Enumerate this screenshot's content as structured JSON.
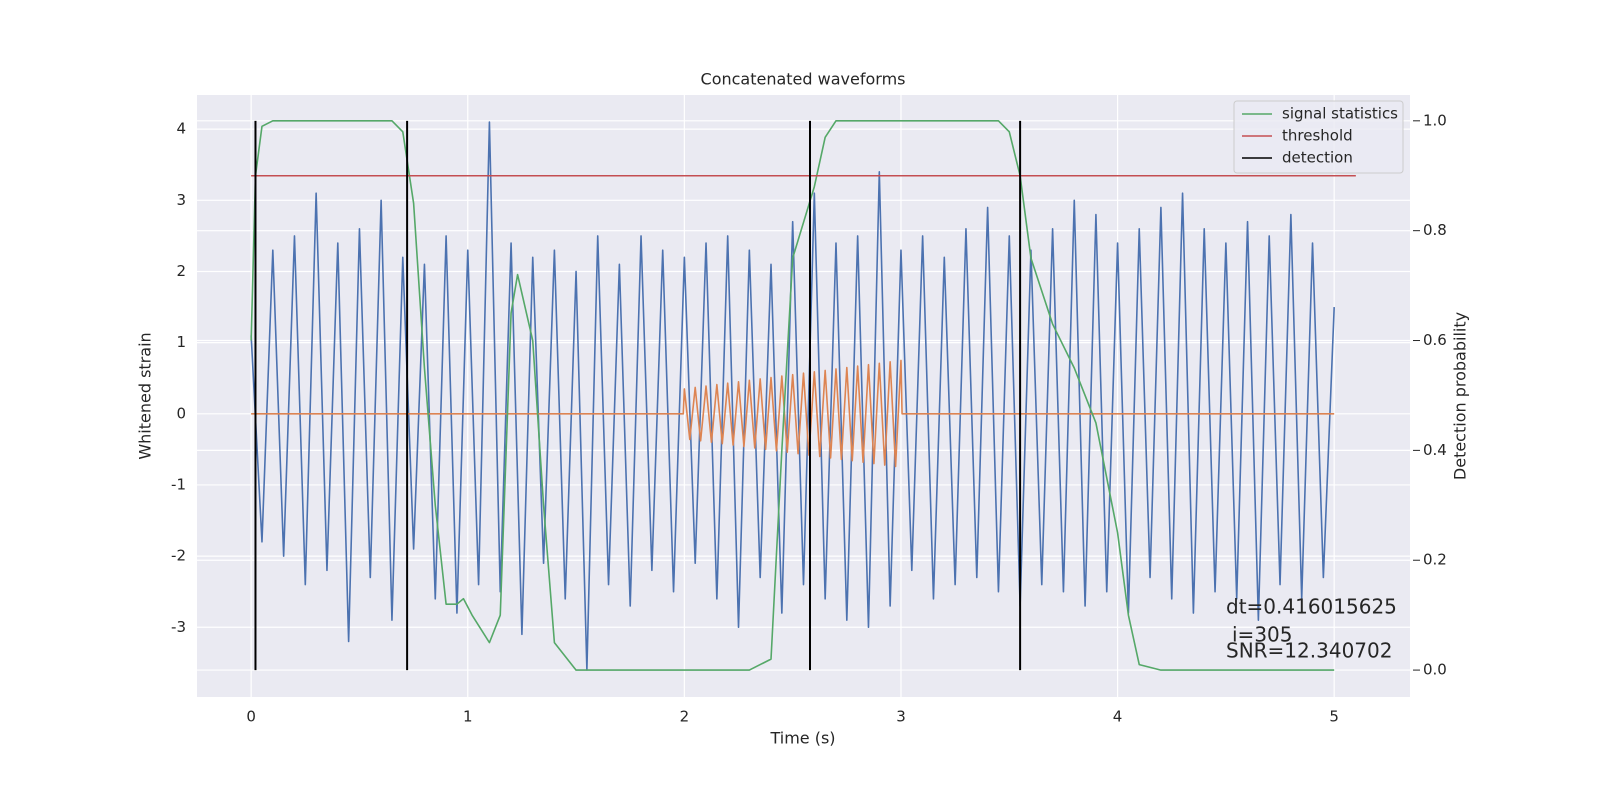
{
  "chart_data": {
    "type": "line",
    "title": "Concatenated waveforms",
    "xlabel": "Time (s)",
    "ylabel": "Whitened strain",
    "y2label": "Detection probability",
    "xlim": [
      -0.25,
      5.35
    ],
    "xticks": [
      0,
      1,
      2,
      3,
      4,
      5
    ],
    "ylim": [
      -3.98,
      4.48
    ],
    "yticks": [
      -3,
      -2,
      -1,
      0,
      1,
      2,
      3,
      4
    ],
    "y2lim": [
      -0.049,
      1.047
    ],
    "y2ticks": [
      {
        "value": 0,
        "label": "0.0"
      },
      {
        "value": 0.2,
        "label": "0.2"
      },
      {
        "value": 0.4,
        "label": "0.4"
      },
      {
        "value": 0.6,
        "label": "0.6"
      },
      {
        "value": 0.8,
        "label": "0.8"
      },
      {
        "value": 1.0,
        "label": "1.0"
      }
    ],
    "grid": true,
    "legend": "upper right",
    "series": [
      {
        "color": "#4c72b0",
        "x": [
          0,
          0.05,
          0.1,
          0.15,
          0.2,
          0.25,
          0.3,
          0.35,
          0.4,
          0.45,
          0.5,
          0.55,
          0.6,
          0.65,
          0.7,
          0.75,
          0.8,
          0.85,
          0.9,
          0.95,
          1.0,
          1.05,
          1.1,
          1.15,
          1.2,
          1.25,
          1.3,
          1.35,
          1.4,
          1.45,
          1.5,
          1.55,
          1.6,
          1.65,
          1.7,
          1.75,
          1.8,
          1.85,
          1.9,
          1.95,
          2.0,
          2.05,
          2.1,
          2.15,
          2.2,
          2.25,
          2.3,
          2.35,
          2.4,
          2.45,
          2.5,
          2.55,
          2.6,
          2.65,
          2.7,
          2.75,
          2.8,
          2.85,
          2.9,
          2.95,
          3.0,
          3.05,
          3.1,
          3.15,
          3.2,
          3.25,
          3.3,
          3.35,
          3.4,
          3.45,
          3.5,
          3.55,
          3.6,
          3.65,
          3.7,
          3.75,
          3.8,
          3.85,
          3.9,
          3.95,
          4.0,
          4.05,
          4.1,
          4.15,
          4.2,
          4.25,
          4.3,
          4.35,
          4.4,
          4.45,
          4.5,
          4.55,
          4.6,
          4.65,
          4.7,
          4.75,
          4.8,
          4.85,
          4.9,
          4.95,
          5.0
        ],
        "values": [
          1.1,
          -1.8,
          2.3,
          -2.0,
          2.5,
          -2.4,
          3.1,
          -2.2,
          2.4,
          -3.2,
          2.6,
          -2.3,
          3.0,
          -2.9,
          2.2,
          -1.9,
          2.1,
          -2.6,
          2.5,
          -2.8,
          2.3,
          -2.4,
          4.1,
          -2.5,
          2.4,
          -3.1,
          2.2,
          -2.1,
          2.3,
          -2.6,
          2.0,
          -3.6,
          2.5,
          -2.4,
          2.1,
          -2.7,
          2.5,
          -2.2,
          2.3,
          -2.5,
          2.2,
          -2.1,
          2.4,
          -2.6,
          2.5,
          -3.0,
          2.3,
          -2.3,
          2.1,
          -2.8,
          2.7,
          -2.4,
          3.1,
          -2.6,
          2.4,
          -2.9,
          2.5,
          -3.0,
          3.4,
          -2.7,
          2.3,
          -2.2,
          2.5,
          -2.6,
          2.2,
          -2.4,
          2.6,
          -2.3,
          2.9,
          -2.5,
          2.5,
          -2.7,
          2.3,
          -2.4,
          2.6,
          -2.5,
          3.0,
          -2.7,
          2.8,
          -2.5,
          2.4,
          -2.8,
          2.6,
          -2.3,
          2.9,
          -2.6,
          3.1,
          -2.8,
          2.6,
          -2.5,
          2.4,
          -2.6,
          2.7,
          -2.9,
          2.5,
          -2.4,
          2.8,
          -2.6,
          2.4,
          -2.3,
          1.5
        ]
      },
      {
        "color": "#dd8452",
        "x": [
          0,
          1.995,
          2.0,
          2.025,
          2.05,
          2.075,
          2.1,
          2.125,
          2.15,
          2.175,
          2.2,
          2.225,
          2.25,
          2.275,
          2.3,
          2.325,
          2.35,
          2.375,
          2.4,
          2.425,
          2.45,
          2.475,
          2.5,
          2.525,
          2.55,
          2.575,
          2.6,
          2.625,
          2.65,
          2.675,
          2.7,
          2.725,
          2.75,
          2.775,
          2.8,
          2.825,
          2.85,
          2.875,
          2.9,
          2.925,
          2.95,
          2.975,
          3.0,
          3.005,
          5.0
        ],
        "values": [
          0,
          0,
          0.35,
          -0.36,
          0.37,
          -0.38,
          0.39,
          -0.4,
          0.41,
          -0.42,
          0.43,
          -0.44,
          0.45,
          -0.46,
          0.47,
          -0.48,
          0.49,
          -0.5,
          0.51,
          -0.52,
          0.53,
          -0.54,
          0.55,
          -0.56,
          0.57,
          -0.58,
          0.59,
          -0.6,
          0.61,
          -0.62,
          0.63,
          -0.64,
          0.65,
          -0.66,
          0.67,
          -0.68,
          0.69,
          -0.7,
          0.71,
          -0.72,
          0.73,
          -0.74,
          0.75,
          0,
          0
        ]
      },
      {
        "name": "signal statistics",
        "color": "#55a868",
        "axis": "y2",
        "x": [
          0,
          0.02,
          0.05,
          0.1,
          0.65,
          0.7,
          0.75,
          0.8,
          0.85,
          0.9,
          0.95,
          0.98,
          1.02,
          1.1,
          1.15,
          1.2,
          1.23,
          1.3,
          1.35,
          1.4,
          1.5,
          2.3,
          2.4,
          2.45,
          2.5,
          2.6,
          2.65,
          2.7,
          3.45,
          3.5,
          3.55,
          3.6,
          3.7,
          3.8,
          3.9,
          4.0,
          4.05,
          4.1,
          4.2,
          5.0
        ],
        "values": [
          0.6,
          0.9,
          0.99,
          1.0,
          1.0,
          0.98,
          0.85,
          0.55,
          0.3,
          0.12,
          0.12,
          0.13,
          0.1,
          0.05,
          0.1,
          0.65,
          0.72,
          0.6,
          0.3,
          0.05,
          0.0,
          0.0,
          0.02,
          0.4,
          0.75,
          0.88,
          0.97,
          1.0,
          1.0,
          0.98,
          0.9,
          0.75,
          0.63,
          0.55,
          0.45,
          0.25,
          0.1,
          0.01,
          0.0,
          0.0
        ]
      },
      {
        "name": "threshold",
        "color": "#c44e52",
        "axis": "y2",
        "x": [
          0,
          5.1
        ],
        "values": [
          0.9,
          0.9
        ]
      }
    ],
    "vlines": {
      "name": "detection",
      "color": "#000000",
      "x": [
        0.02,
        0.72,
        2.58,
        3.55
      ],
      "ymin": 0,
      "ymax": 1
    },
    "annotations": [
      "dt=0.416015625",
      "i=305",
      "SNR=12.340702"
    ]
  }
}
